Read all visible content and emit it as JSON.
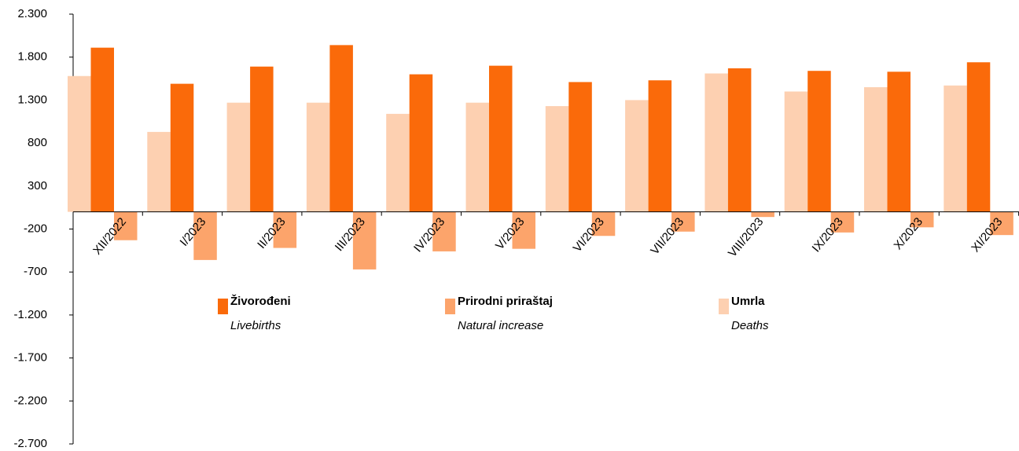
{
  "chart_data": {
    "type": "bar",
    "categories": [
      "XII/2022",
      "I/2023",
      "II/2023",
      "III/2023",
      "IV/2023",
      "V/2023",
      "VI/2023",
      "VII/2023",
      "VIII/2023",
      "IX/2023",
      "X/2023",
      "XI/2023"
    ],
    "series": [
      {
        "name": "Umrla",
        "name_en": "Deaths",
        "color": "#fdd0b1",
        "values": [
          1580,
          930,
          1270,
          1270,
          1140,
          1270,
          1230,
          1300,
          1610,
          1400,
          1450,
          1470
        ]
      },
      {
        "name": "Živorođeni",
        "name_en": "Livebirths",
        "color": "#fa6a0a",
        "values": [
          1910,
          1490,
          1690,
          1940,
          1600,
          1700,
          1510,
          1530,
          1670,
          1640,
          1630,
          1740
        ]
      },
      {
        "name": "Prirodni priraštaj",
        "name_en": "Natural increase",
        "color": "#fca46b",
        "values": [
          -330,
          -560,
          -420,
          -670,
          -460,
          -430,
          -280,
          -230,
          -60,
          -240,
          -180,
          -270
        ]
      }
    ],
    "ylim": [
      -2700,
      2300
    ],
    "yticks": [
      {
        "value": -2700,
        "label": "-2.700"
      },
      {
        "value": -2200,
        "label": "-2.200"
      },
      {
        "value": -1700,
        "label": "-1.700"
      },
      {
        "value": -1200,
        "label": "-1.200"
      },
      -700,
      -200,
      300,
      800,
      {
        "value": 1300,
        "label": "1.300"
      },
      {
        "value": 1800,
        "label": "1.800"
      },
      {
        "value": 2300,
        "label": "2.300"
      }
    ],
    "legend_order": [
      1,
      2,
      0
    ]
  }
}
